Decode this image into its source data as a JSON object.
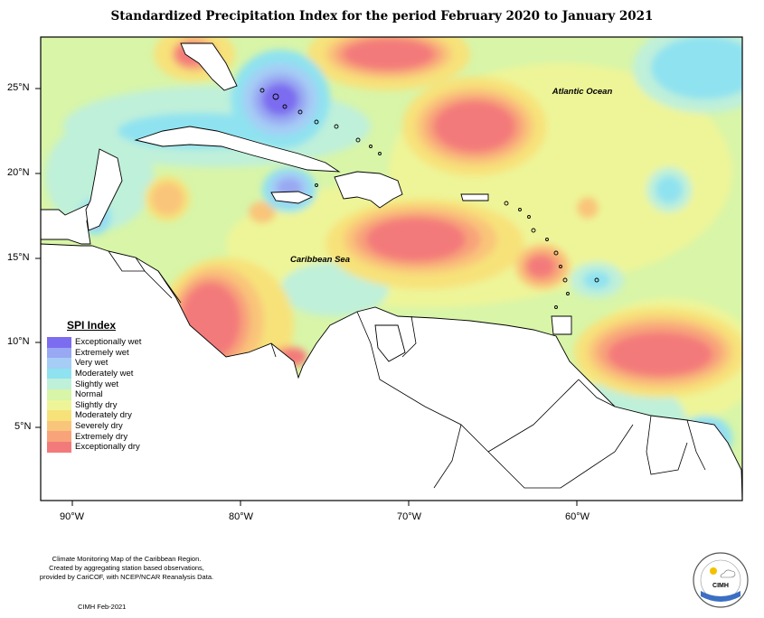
{
  "title": "Standardized Precipitation Index for the period February 2020 to January 2021",
  "ocean_labels": {
    "atlantic": "Atlantic Ocean",
    "caribbean": "Caribbean Sea"
  },
  "axes": {
    "x_ticks": [
      "90°W",
      "80°W",
      "70°W",
      "60°W"
    ],
    "y_ticks": [
      "25°N",
      "20°N",
      "15°N",
      "10°N",
      "5°N"
    ]
  },
  "legend": {
    "title": "SPI Index",
    "items": [
      {
        "label": "Exceptionally wet",
        "color": "#7b6cf0"
      },
      {
        "label": "Extremely wet",
        "color": "#99a8f2"
      },
      {
        "label": "Very wet",
        "color": "#a5cdf5"
      },
      {
        "label": "Moderately wet",
        "color": "#8fe2f0"
      },
      {
        "label": "Slightly wet",
        "color": "#bff0d9"
      },
      {
        "label": "Normal",
        "color": "#d8f5a8"
      },
      {
        "label": "Slightly dry",
        "color": "#eef598"
      },
      {
        "label": "Moderately dry",
        "color": "#f7e27a"
      },
      {
        "label": "Severely dry",
        "color": "#f9c57a"
      },
      {
        "label": "Extremely dry",
        "color": "#f8a37a"
      },
      {
        "label": "Exceptionally dry",
        "color": "#f37a7a"
      }
    ]
  },
  "footer": {
    "line1": "Climate Monitoring Map of the Caribbean Region.",
    "line2": "Created by aggregating station based observations,",
    "line3": "provided by CariCOF, with NCEP/NCAR Reanalysis Data.",
    "date": "CIMH Feb-2021"
  },
  "logo": {
    "text": "CIMH"
  }
}
